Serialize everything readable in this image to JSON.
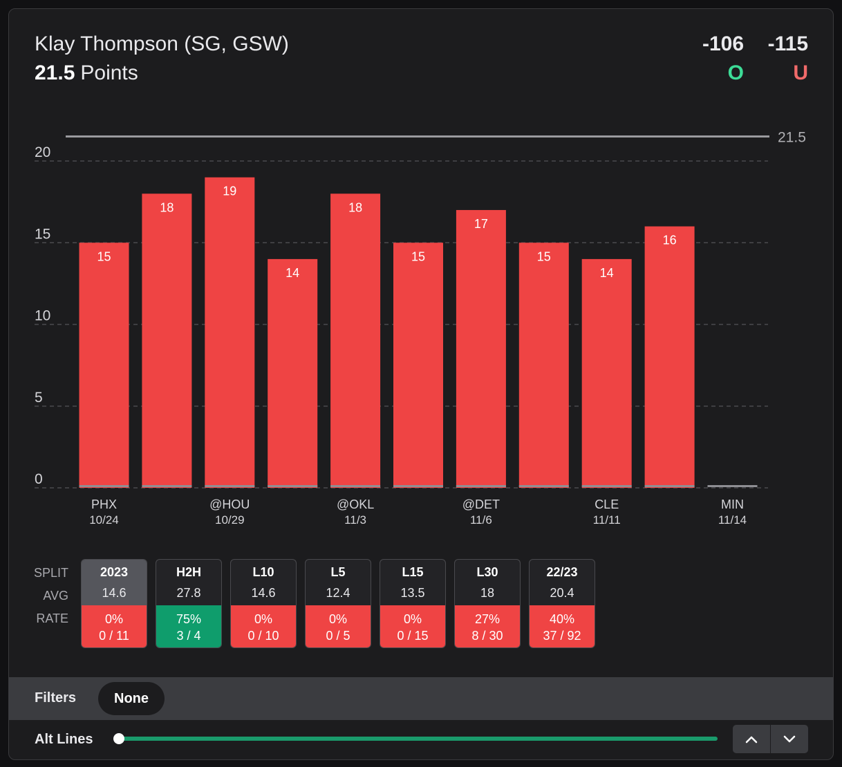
{
  "header": {
    "player": "Klay Thompson (SG, GSW)",
    "line": "21.5",
    "stat": "Points",
    "over_odds": "-106",
    "under_odds": "-115",
    "over_label": "O",
    "under_label": "U"
  },
  "chart_data": {
    "type": "bar",
    "categories": [
      "PHX",
      "",
      "@HOU",
      "",
      "@OKL",
      "",
      "@DET",
      "",
      "CLE",
      "",
      "MIN"
    ],
    "dates": [
      "10/24",
      "",
      "10/29",
      "",
      "11/3",
      "",
      "11/6",
      "",
      "11/11",
      "",
      "11/14"
    ],
    "values": [
      15,
      18,
      19,
      14,
      18,
      15,
      17,
      15,
      14,
      16,
      0
    ],
    "data_labels": [
      "15",
      "18",
      "19",
      "14",
      "18",
      "15",
      "17",
      "15",
      "14",
      "16",
      ""
    ],
    "yticks": [
      0,
      5,
      10,
      15,
      20
    ],
    "ylim": [
      0,
      21.5
    ],
    "line_value": 21.5,
    "line_label": "21.5",
    "bar_color": "#ef4444",
    "line_color": "#9a9a9e",
    "title": "",
    "xlabel": "",
    "ylabel": ""
  },
  "splits": {
    "labels": {
      "split": "SPLIT",
      "avg": "AVG",
      "rate": "RATE"
    },
    "columns": [
      {
        "name": "2023",
        "avg": "14.6",
        "rate": "0%",
        "record": "0 / 11",
        "color": "#ef4444",
        "active": true
      },
      {
        "name": "H2H",
        "avg": "27.8",
        "rate": "75%",
        "record": "3 / 4",
        "color": "#0f9d6c",
        "active": false
      },
      {
        "name": "L10",
        "avg": "14.6",
        "rate": "0%",
        "record": "0 / 10",
        "color": "#ef4444",
        "active": false
      },
      {
        "name": "L5",
        "avg": "12.4",
        "rate": "0%",
        "record": "0 / 5",
        "color": "#ef4444",
        "active": false
      },
      {
        "name": "L15",
        "avg": "13.5",
        "rate": "0%",
        "record": "0 / 15",
        "color": "#ef4444",
        "active": false
      },
      {
        "name": "L30",
        "avg": "18",
        "rate": "27%",
        "record": "8 / 30",
        "color": "#ef4444",
        "active": false
      },
      {
        "name": "22/23",
        "avg": "20.4",
        "rate": "40%",
        "record": "37 / 92",
        "color": "#ef4444",
        "active": false
      }
    ]
  },
  "filters": {
    "label": "Filters",
    "value": "None"
  },
  "alt_lines": {
    "label": "Alt Lines",
    "slider_value": 0
  },
  "icons": {
    "up": "chevron-up-icon",
    "down": "chevron-down-icon"
  }
}
